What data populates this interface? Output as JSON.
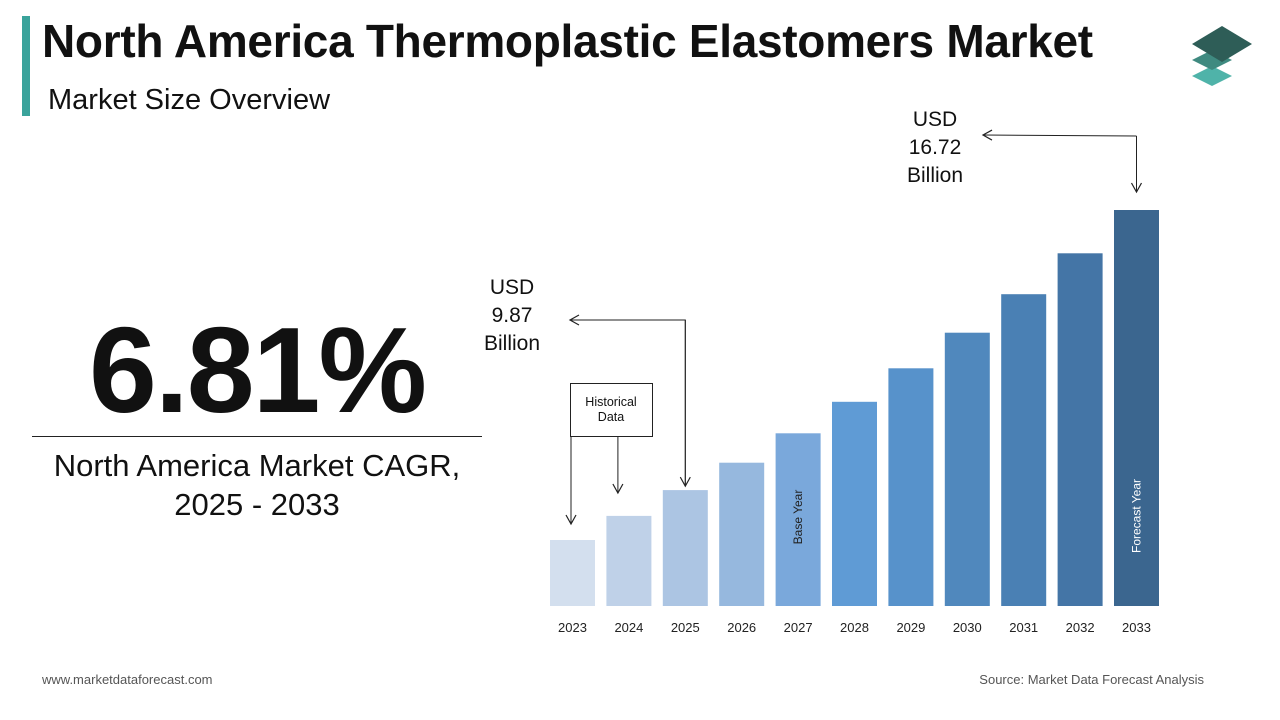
{
  "header": {
    "title": "North America Thermoplastic Elastomers Market",
    "subtitle": "Market Size Overview"
  },
  "cagr": {
    "value": "6.81%",
    "label_line1": "North America Market CAGR,",
    "label_line2": "2025 - 2033"
  },
  "footer": {
    "website": "www.marketdataforecast.com",
    "source": "Source: Market Data Forecast Analysis"
  },
  "colors": {
    "accent": "#3aa39b",
    "logo_top": "#2e5d57",
    "logo_middle": "#3f8a80",
    "logo_bottom": "#4fb3a9"
  },
  "chart_data": {
    "type": "bar",
    "categories": [
      "2023",
      "2024",
      "2025",
      "2026",
      "2027",
      "2028",
      "2029",
      "2030",
      "2031",
      "2032",
      "2033"
    ],
    "values": [
      8.65,
      9.24,
      9.87,
      10.54,
      11.26,
      12.03,
      12.85,
      13.72,
      14.66,
      15.66,
      16.72
    ],
    "bar_colors": [
      "#d3dfee",
      "#bfd1e8",
      "#acc5e3",
      "#96b8de",
      "#7aa8db",
      "#5f9bd5",
      "#5792cb",
      "#5088bd",
      "#4a80b4",
      "#4475a6",
      "#3b668f"
    ],
    "ylim": [
      0,
      18
    ],
    "annotations": {
      "start_value": [
        "USD",
        "9.87",
        "Billion"
      ],
      "end_value": [
        "USD",
        "16.72",
        "Billion"
      ],
      "historical": [
        "Historical",
        "Data"
      ],
      "base_year": "Base Year",
      "forecast_year": "Forecast Year"
    }
  }
}
